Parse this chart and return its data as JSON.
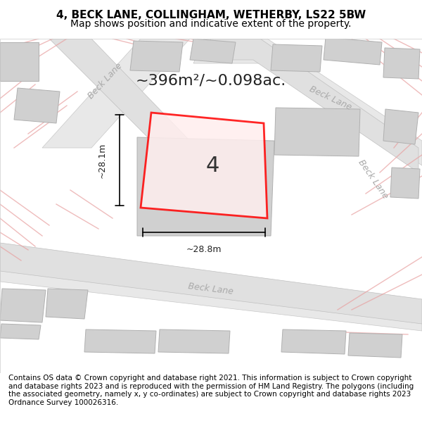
{
  "title": "4, BECK LANE, COLLINGHAM, WETHERBY, LS22 5BW",
  "subtitle": "Map shows position and indicative extent of the property.",
  "area_label": "~396m²/~0.098ac.",
  "plot_number": "4",
  "width_label": "~28.8m",
  "height_label": "~28.1m",
  "footer": "Contains OS data © Crown copyright and database right 2021. This information is subject to Crown copyright and database rights 2023 and is reproduced with the permission of HM Land Registry. The polygons (including the associated geometry, namely x, y co-ordinates) are subject to Crown copyright and database rights 2023 Ordnance Survey 100026316.",
  "bg_color": "#f5f5f5",
  "map_bg": "#ffffff",
  "road_color": "#e8e8e8",
  "road_stroke": "#cccccc",
  "building_color": "#d0d0d0",
  "building_stroke": "#aaaaaa",
  "plot_color": "#ff000015",
  "plot_stroke": "#ff0000",
  "road_label_color": "#888888",
  "road_lines_color": "#e8a0a0",
  "title_fontsize": 11,
  "subtitle_fontsize": 10,
  "footer_fontsize": 7.5
}
